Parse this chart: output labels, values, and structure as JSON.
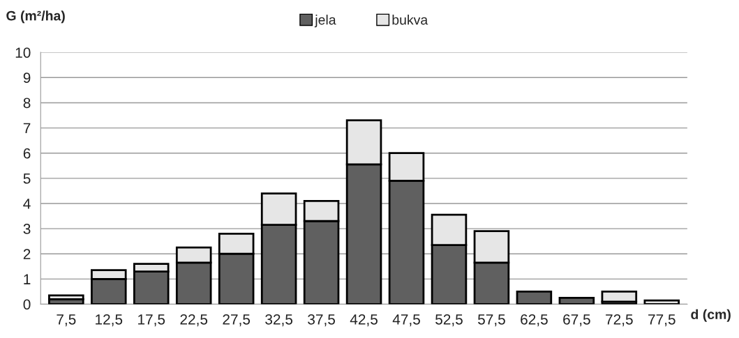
{
  "chart_data": {
    "type": "bar",
    "stacked": true,
    "ylabel": "G (m²/ha)",
    "xlabel": "d (cm)",
    "categories": [
      "7,5",
      "12,5",
      "17,5",
      "22,5",
      "27,5",
      "32,5",
      "37,5",
      "42,5",
      "47,5",
      "52,5",
      "57,5",
      "62,5",
      "67,5",
      "72,5",
      "77,5"
    ],
    "series": [
      {
        "name": "jela",
        "color": "#606060",
        "values": [
          0.2,
          1.0,
          1.3,
          1.65,
          2.0,
          3.15,
          3.3,
          5.55,
          4.9,
          2.35,
          1.65,
          0.5,
          0.25,
          0.1,
          null
        ]
      },
      {
        "name": "bukva",
        "color": "#e6e6e6",
        "values": [
          0.15,
          0.35,
          0.3,
          0.6,
          0.8,
          1.25,
          0.8,
          1.75,
          1.1,
          1.2,
          1.25,
          null,
          null,
          0.4,
          0.15
        ]
      }
    ],
    "ylim": [
      0,
      10
    ],
    "yticks": [
      0,
      1,
      2,
      3,
      4,
      5,
      6,
      7,
      8,
      9,
      10
    ],
    "grid": "y",
    "legend": "top"
  }
}
